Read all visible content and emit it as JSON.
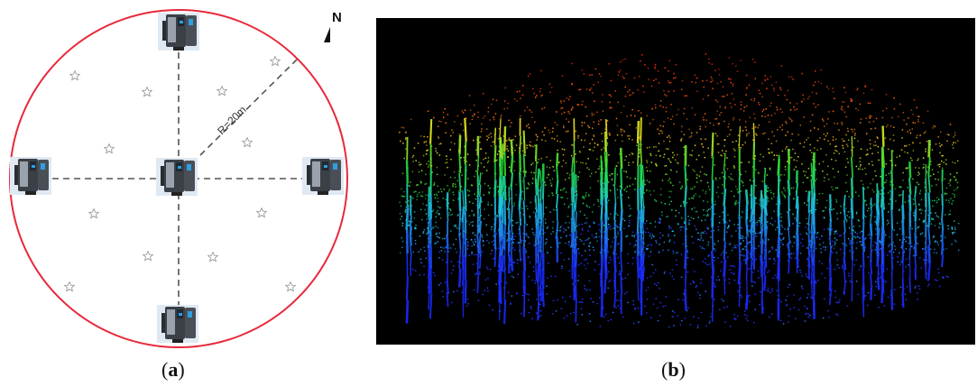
{
  "figure": {
    "panel_a": {
      "radius_label": "R=20m",
      "north_label": "N",
      "caption_open": "(",
      "caption_letter": "a",
      "caption_close": ")",
      "circle_color": "#e8283a",
      "line_color": "#555555",
      "star_color": "#9a9a9a",
      "scanner_positions": [
        "north",
        "west",
        "center",
        "east",
        "south"
      ],
      "reference_marker_icon": "star-icon",
      "scanner_icon": "laser-scanner-icon"
    },
    "panel_b": {
      "caption_open": "(",
      "caption_letter": "b",
      "caption_close": ")",
      "background_color": "#000000",
      "height_color_ramp": [
        "#1a2cff",
        "#1fc8e8",
        "#1fe03a",
        "#e8f020",
        "#ff7a10",
        "#ff1a0a"
      ]
    }
  }
}
